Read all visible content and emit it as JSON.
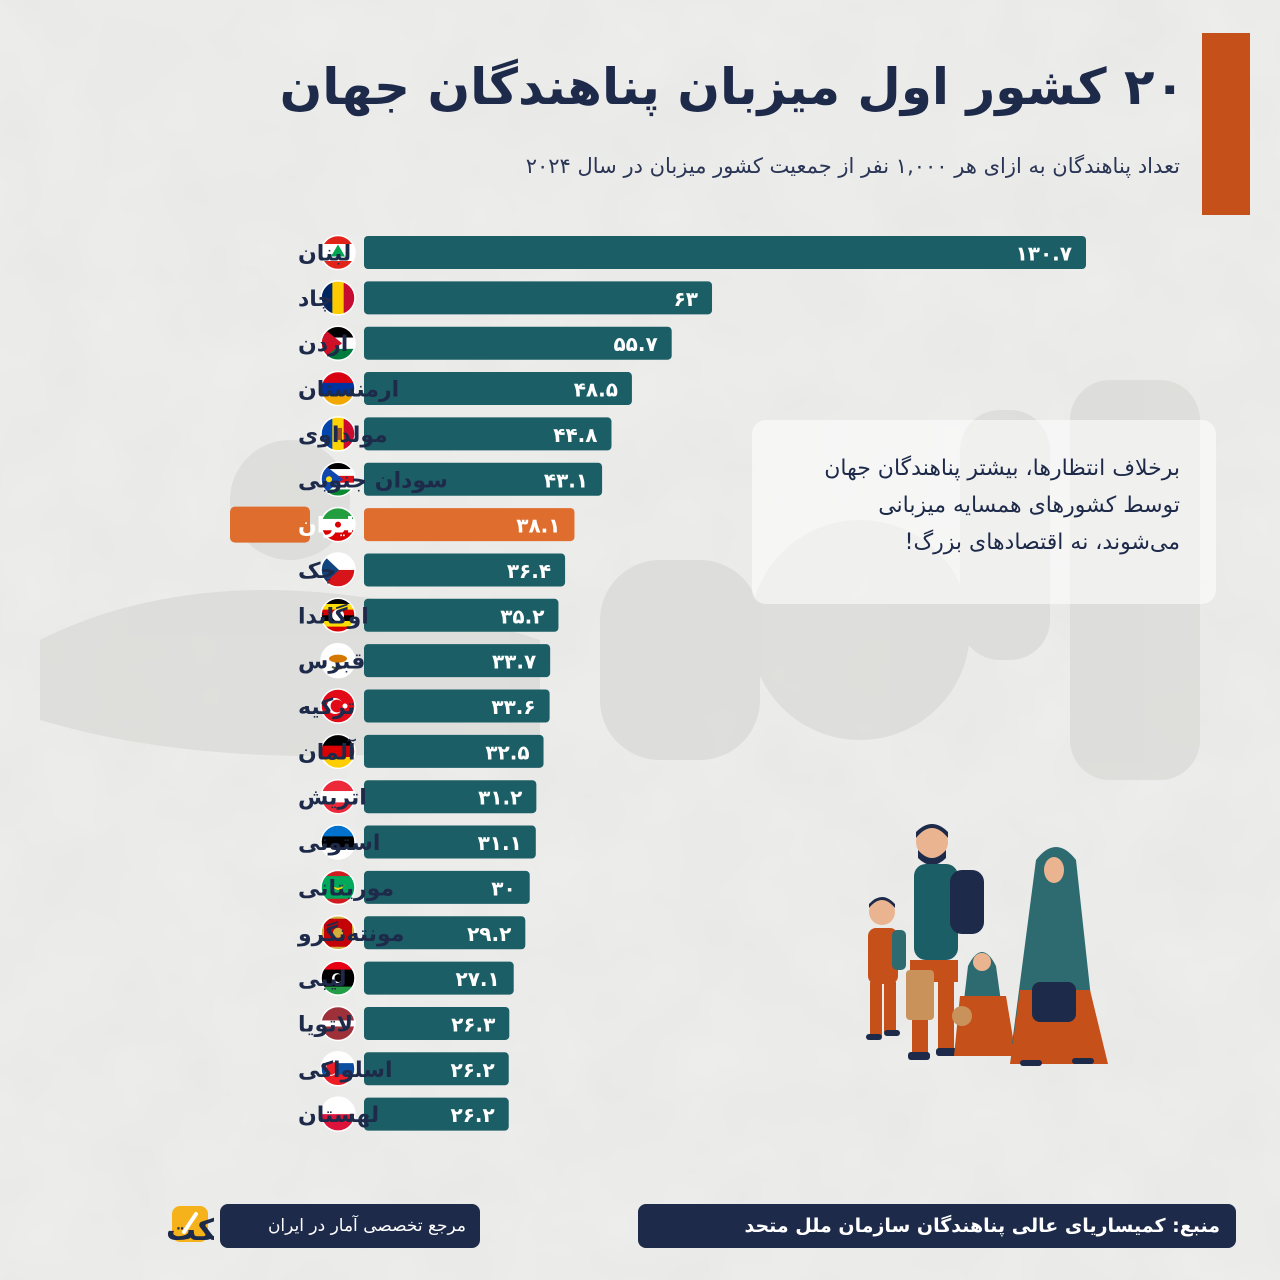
{
  "header": {
    "title": "۲۰ کشور اول میزبان پناهندگان جهان",
    "subtitle": "تعداد پناهندگان به ازای هر ۱,۰۰۰ نفر از جمعیت کشور میزبان در سال ۲۰۲۴"
  },
  "note": {
    "lines": [
      "برخلاف انتظارها، بیشتر پناهندگان جهان",
      "توسط کشورهای همسایه میزبانی",
      "می‌شوند، نه اقتصادهای بزرگ!"
    ]
  },
  "footer": {
    "logo_text": "آمارفکت",
    "reference": "مرجع تخصصی آمار در ایران",
    "source": "منبع: کمیساریای عالی پناهندگان سازمان ملل متحد"
  },
  "colors": {
    "bar": "#1c5e66",
    "highlight": "#de6d2e",
    "accent": "#c5501a",
    "navy": "#1e2a4a"
  },
  "chart_data": {
    "type": "bar",
    "orientation": "horizontal",
    "title": "۲۰ کشور اول میزبان پناهندگان جهان",
    "subtitle": "تعداد پناهندگان به ازای هر ۱,۰۰۰ نفر از جمعیت کشور میزبان در سال ۲۰۲۴",
    "categories": [
      "لبنان",
      "چاد",
      "اردن",
      "ارمنستان",
      "مولداوی",
      "سودان جنوبی",
      "ایران",
      "چک",
      "اوگاندا",
      "قبرس",
      "ترکیه",
      "آلمان",
      "اتریش",
      "استونی",
      "موریتانی",
      "مونته‌نگرو",
      "لیبی",
      "لاتویا",
      "اسلواکی",
      "لهستان"
    ],
    "values": [
      130.7,
      63,
      55.7,
      48.5,
      44.8,
      43.1,
      38.1,
      36.4,
      35.2,
      33.7,
      33.6,
      32.5,
      31.2,
      31.1,
      30,
      29.2,
      27.1,
      26.3,
      26.2,
      26.2
    ],
    "value_labels": [
      "۱۳۰.۷",
      "۶۳",
      "۵۵.۷",
      "۴۸.۵",
      "۴۴.۸",
      "۴۳.۱",
      "۳۸.۱",
      "۳۶.۴",
      "۳۵.۲",
      "۳۳.۷",
      "۳۳.۶",
      "۳۲.۵",
      "۳۱.۲",
      "۳۱.۱",
      "۳۰",
      "۲۹.۲",
      "۲۷.۱",
      "۲۶.۳",
      "۲۶.۲",
      "۲۶.۲"
    ],
    "flags": [
      "lebanon-flag-icon",
      "chad-flag-icon",
      "jordan-flag-icon",
      "armenia-flag-icon",
      "moldova-flag-icon",
      "south-sudan-flag-icon",
      "iran-flag-icon",
      "czechia-flag-icon",
      "uganda-flag-icon",
      "cyprus-flag-icon",
      "turkey-flag-icon",
      "germany-flag-icon",
      "austria-flag-icon",
      "estonia-flag-icon",
      "mauritania-flag-icon",
      "montenegro-flag-icon",
      "libya-flag-icon",
      "latvia-flag-icon",
      "slovakia-flag-icon",
      "poland-flag-icon"
    ],
    "highlight_category": "ایران",
    "xlim": [
      0,
      130.7
    ],
    "grid": false,
    "legend": "none"
  }
}
